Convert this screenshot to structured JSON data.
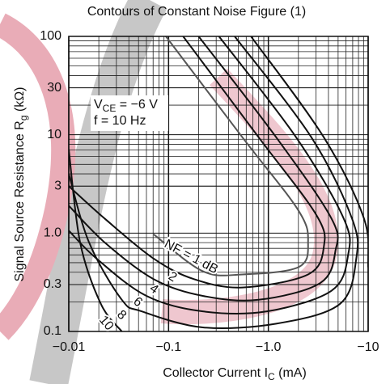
{
  "chart_data": {
    "type": "contour",
    "title": "Contours of Constant Noise Figure (1)",
    "xlabel": {
      "text": "Collector Current  I",
      "sub": "C",
      "after": "  (mA)"
    },
    "ylabel": {
      "text": "Signal Source Resistance  R",
      "sub": "g",
      "after": "  (kΩ)"
    },
    "annotations": [
      {
        "text": "V",
        "sub": "CE",
        "after": " = −6 V"
      },
      {
        "text": "f = 10 Hz"
      }
    ],
    "xscale": "log",
    "yscale": "log",
    "grid": true,
    "minor_grid": true,
    "xlim": [
      -0.01,
      -10
    ],
    "ylim": [
      0.1,
      100
    ],
    "xticks": [
      {
        "value": -0.01,
        "label": "−0.01"
      },
      {
        "value": -0.1,
        "label": "−0.1"
      },
      {
        "value": -1,
        "label": "−1.0"
      },
      {
        "value": -10,
        "label": "−10"
      }
    ],
    "yticks": [
      0.1,
      0.3,
      {
        "value": 1,
        "label": "1.0"
      },
      3,
      10,
      30,
      100
    ],
    "series": [
      {
        "name": "NF = 1 dB",
        "color": "#555555",
        "x": [
          -0.094,
          -0.55,
          -2.0,
          -2.5,
          -2.0,
          -0.55,
          -0.22,
          -0.071
        ],
        "y": [
          100,
          9.4,
          1.7,
          0.8,
          0.45,
          0.38,
          0.41,
          0.97
        ]
      },
      {
        "name": "2",
        "color": "#111111",
        "x": [
          -0.14,
          -0.8,
          -3.0,
          -3.6,
          -2.5,
          -0.55,
          -0.18,
          -0.071,
          -0.023,
          -0.01
        ],
        "y": [
          100,
          9.4,
          1.55,
          0.73,
          0.38,
          0.28,
          0.34,
          0.55,
          1.4,
          3.0
        ]
      },
      {
        "name": "4",
        "color": "#111111",
        "x": [
          -0.2,
          -1.2,
          -4.3,
          -4.7,
          -3.3,
          -0.8,
          -0.22,
          -0.071,
          -0.023,
          -0.01
        ],
        "y": [
          100,
          9.4,
          1.4,
          0.66,
          0.31,
          0.21,
          0.23,
          0.34,
          0.8,
          1.9
        ]
      },
      {
        "name": "6",
        "color": "#111111",
        "x": [
          -0.32,
          -1.9,
          -5.7,
          -6.3,
          -4.3,
          -0.97,
          -0.22,
          -0.06,
          -0.019,
          -0.01
        ],
        "y": [
          100,
          9.4,
          1.4,
          0.6,
          0.26,
          0.16,
          0.16,
          0.23,
          0.55,
          1.06
        ]
      },
      {
        "name": "8",
        "color": "#111111",
        "x": [
          -0.46,
          -2.7,
          -6.9,
          -7.6,
          -5.2,
          -1.2,
          -0.22,
          -0.054,
          -0.034,
          -0.016,
          -0.01
        ],
        "y": [
          100,
          9.4,
          1.4,
          0.55,
          0.19,
          0.12,
          0.11,
          0.16,
          0.21,
          0.8,
          4.0
        ]
      },
      {
        "name": "10",
        "color": "#111111",
        "x": [
          -0.01,
          -0.013,
          -0.021,
          -0.034,
          null,
          -0.67,
          -3.6,
          -9.1,
          -10
        ],
        "y": [
          7.1,
          0.8,
          0.19,
          0.1,
          null,
          100,
          9.4,
          1.4,
          0.45
        ]
      }
    ]
  }
}
